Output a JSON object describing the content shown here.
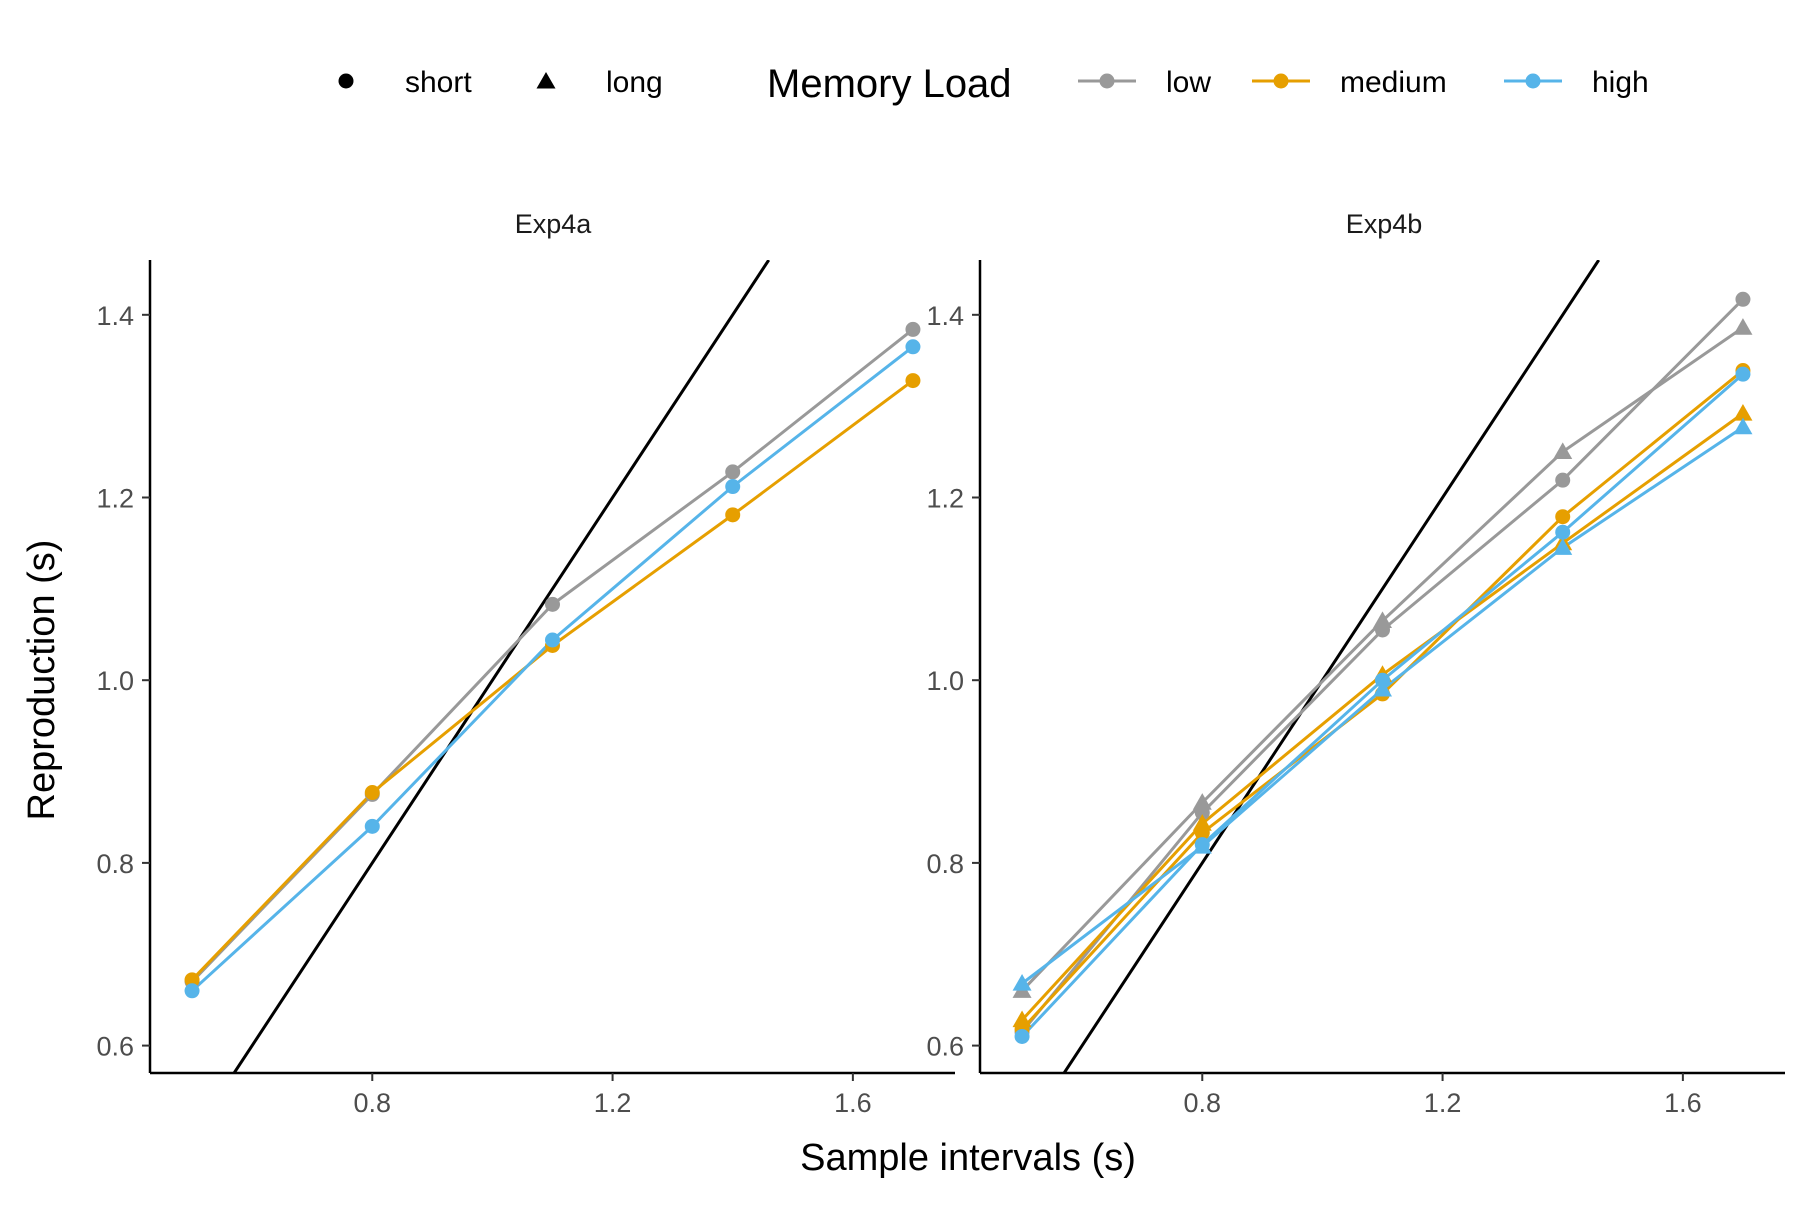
{
  "chart_data": {
    "type": "line",
    "xlabel": "Sample intervals (s)",
    "ylabel": "Reproduction (s)",
    "xlim": [
      0.43,
      1.77
    ],
    "ylim": [
      0.57,
      1.46
    ],
    "x_ticks": [
      "0.8",
      "1.2",
      "1.6"
    ],
    "y_ticks": [
      "0.6",
      "0.8",
      "1.0",
      "1.2",
      "1.4"
    ],
    "grid": false,
    "legend_position": "top",
    "reference_line": "identity (y = x)",
    "colors": {
      "low": "#999999",
      "medium": "#E69F00",
      "high": "#56B4E9"
    },
    "legend": {
      "shape_items": [
        {
          "label": "short",
          "shape": "circle"
        },
        {
          "label": "long",
          "shape": "triangle"
        }
      ],
      "color_title": "Memory Load",
      "color_items": [
        {
          "label": "low",
          "key": "low"
        },
        {
          "label": "medium",
          "key": "medium"
        },
        {
          "label": "high",
          "key": "high"
        }
      ]
    },
    "panels": [
      {
        "title": "Exp4a",
        "series": [
          {
            "load": "low",
            "shape": "circle",
            "x": [
              0.5,
              0.8,
              1.1,
              1.4,
              1.7
            ],
            "y": [
              0.67,
              0.875,
              1.083,
              1.228,
              1.384
            ]
          },
          {
            "load": "medium",
            "shape": "circle",
            "x": [
              0.5,
              0.8,
              1.1,
              1.4,
              1.7
            ],
            "y": [
              0.672,
              0.877,
              1.038,
              1.181,
              1.328
            ]
          },
          {
            "load": "high",
            "shape": "circle",
            "x": [
              0.5,
              0.8,
              1.1,
              1.4,
              1.7
            ],
            "y": [
              0.66,
              0.84,
              1.044,
              1.212,
              1.365
            ]
          }
        ]
      },
      {
        "title": "Exp4b",
        "series": [
          {
            "load": "low",
            "shape": "circle",
            "x": [
              0.5,
              0.8,
              1.1,
              1.4,
              1.7
            ],
            "y": [
              0.615,
              0.855,
              1.055,
              1.219,
              1.417
            ]
          },
          {
            "load": "low",
            "shape": "triangle",
            "x": [
              0.5,
              0.8,
              1.1,
              1.4,
              1.7
            ],
            "y": [
              0.66,
              0.866,
              1.065,
              1.25,
              1.386
            ]
          },
          {
            "load": "medium",
            "shape": "circle",
            "x": [
              0.5,
              0.8,
              1.1,
              1.4,
              1.7
            ],
            "y": [
              0.618,
              0.833,
              0.985,
              1.179,
              1.339
            ]
          },
          {
            "load": "medium",
            "shape": "triangle",
            "x": [
              0.5,
              0.8,
              1.1,
              1.4,
              1.7
            ],
            "y": [
              0.628,
              0.843,
              1.006,
              1.15,
              1.292
            ]
          },
          {
            "load": "high",
            "shape": "circle",
            "x": [
              0.5,
              0.8,
              1.1,
              1.4,
              1.7
            ],
            "y": [
              0.61,
              0.82,
              1.0,
              1.162,
              1.335
            ]
          },
          {
            "load": "high",
            "shape": "triangle",
            "x": [
              0.5,
              0.8,
              1.1,
              1.4,
              1.7
            ],
            "y": [
              0.668,
              0.818,
              0.99,
              1.145,
              1.277
            ]
          }
        ]
      }
    ]
  }
}
